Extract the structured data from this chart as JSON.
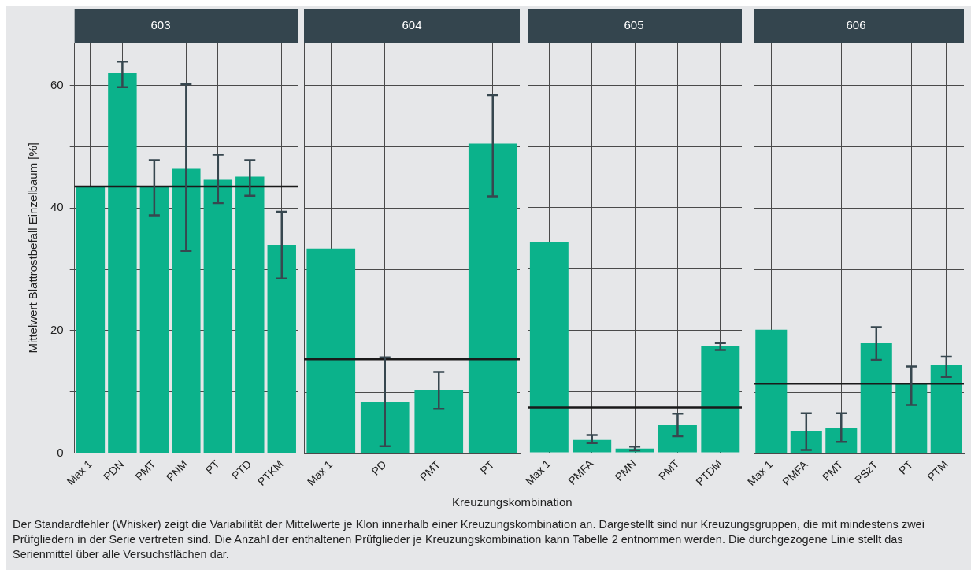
{
  "chart_data": [
    {
      "type": "bar",
      "title": "603",
      "ylabel": "Mittelwert Blattrostbefall Einzelbaum [%]",
      "categories": [
        "Max 1",
        "PDN",
        "PMT",
        "PNM",
        "PT",
        "PTD",
        "PTKM"
      ],
      "values": [
        43.5,
        62.0,
        43.5,
        46.4,
        44.7,
        45.1,
        34.0
      ],
      "errors": [
        null,
        [
          59.7,
          63.9
        ],
        [
          38.8,
          47.8
        ],
        [
          33.0,
          60.2
        ],
        [
          40.8,
          48.7
        ],
        [
          42.0,
          47.8
        ],
        [
          28.5,
          39.4
        ]
      ],
      "color": "#0bb28b",
      "ylim": [
        0,
        67
      ],
      "yticks": [
        0,
        {
          "value": 10,
          "label": null
        },
        20,
        {
          "value": 30,
          "label": null
        },
        40,
        {
          "value": 50,
          "label": null
        },
        60
      ],
      "grid": true,
      "ref_lines": [
        {
          "axis": "y",
          "value": 43.5,
          "color": "#1a1a1a"
        }
      ],
      "annotations": [
        "Der Standardfehler (Whisker) zeigt die Variabilität der Mittelwerte je Klon innerhalb einer Kreuzungskombination an. Dargestellt sind nur Kreuzungsgruppen, die mit mindestens zwei Prüfgliedern in der Serie vertreten sind. Die Anzahl der enthaltenen Prüfglieder je Kreuzungskombination kann Tabelle 2 entnommen werden. Die durchgezogene Linie stellt das Serienmittel über alle Versuchsflächen dar."
      ]
    },
    {
      "type": "bar",
      "title": "604",
      "xlabel": "Kreuzungskombination",
      "categories": [
        "Max 1",
        "PD",
        "PMT",
        "PT"
      ],
      "values": [
        33.4,
        8.4,
        10.4,
        50.5
      ],
      "errors": [
        null,
        [
          1.2,
          15.7
        ],
        [
          7.3,
          13.3
        ],
        [
          41.9,
          58.4
        ]
      ],
      "color": "#0bb28b",
      "ylim": [
        0,
        67
      ],
      "yticks": [
        0,
        {
          "value": 10,
          "label": null
        },
        20,
        {
          "value": 30,
          "label": null
        },
        40,
        {
          "value": 50,
          "label": null
        },
        60
      ],
      "grid": true,
      "tick_labels": "x",
      "ref_lines": [
        {
          "axis": "y",
          "value": 15.4,
          "color": "#1a1a1a"
        }
      ]
    },
    {
      "type": "bar",
      "title": "605",
      "categories": [
        "Max 1",
        "PMFA",
        "PMN",
        "PMT",
        "PTDM"
      ],
      "values": [
        34.4,
        2.1,
        0.7,
        4.5,
        17.5
      ],
      "errors": [
        null,
        [
          1.6,
          2.9
        ],
        [
          0.4,
          1.0
        ],
        [
          2.7,
          6.4
        ],
        [
          16.8,
          17.9
        ]
      ],
      "color": "#0bb28b",
      "ylim": [
        0,
        67
      ],
      "yticks": [
        0,
        {
          "value": 10,
          "label": null
        },
        20,
        {
          "value": 30,
          "label": null
        },
        40,
        {
          "value": 50,
          "label": null
        },
        60
      ],
      "grid": true,
      "tick_labels": "x",
      "ref_lines": [
        {
          "axis": "y",
          "value": 7.4,
          "color": "#1a1a1a"
        }
      ]
    },
    {
      "type": "bar",
      "title": "606",
      "categories": [
        "Max 1",
        "PMFA",
        "PMT",
        "PSzT",
        "PT",
        "PTM"
      ],
      "values": [
        20.2,
        3.7,
        4.2,
        18.0,
        11.4,
        14.4
      ],
      "errors": [
        null,
        [
          0.6,
          6.6
        ],
        [
          1.9,
          6.6
        ],
        [
          15.3,
          20.6
        ],
        [
          7.9,
          14.2
        ],
        [
          12.5,
          15.8
        ]
      ],
      "color": "#0bb28b",
      "ylim": [
        0,
        67
      ],
      "yticks": [
        0,
        {
          "value": 10,
          "label": null
        },
        20,
        {
          "value": 30,
          "label": null
        },
        40,
        {
          "value": 50,
          "label": null
        },
        60
      ],
      "grid": true,
      "tick_labels": "x",
      "ref_lines": [
        {
          "axis": "y",
          "value": 11.4,
          "color": "#1a1a1a"
        }
      ]
    }
  ]
}
